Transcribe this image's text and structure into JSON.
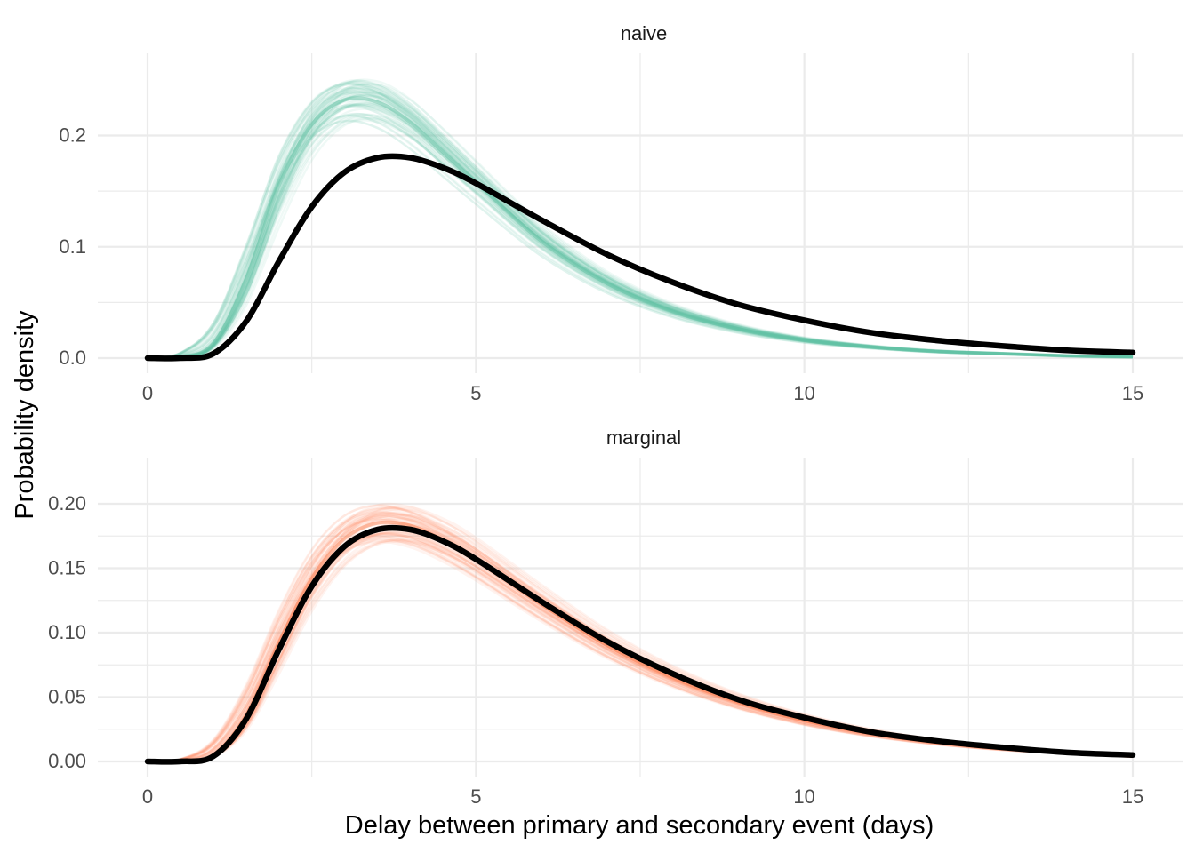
{
  "colors": {
    "naive": "#66c2a5",
    "marginal": "#fc8d62",
    "true_curve": "#000000",
    "grid": "#ebebeb"
  },
  "chart_data": {
    "type": "line",
    "xlabel": "Delay between primary and secondary event (days)",
    "ylabel": "Probability density",
    "panels": [
      {
        "label": "naive",
        "color_key": "naive",
        "xlim": [
          0,
          15
        ],
        "ylim": [
          0,
          0.25
        ],
        "x_ticks": [
          0,
          5,
          10,
          15
        ],
        "y_ticks": [
          0.0,
          0.1,
          0.2
        ],
        "y_tick_labels": [
          "0.0",
          "0.1",
          "0.2"
        ],
        "series": [
          {
            "role": "posterior_draws",
            "x": [
              0,
              0.5,
              1,
              1.5,
              2,
              2.5,
              3,
              3.5,
              4,
              4.5,
              5,
              6,
              7,
              8,
              9,
              10,
              11,
              12,
              13,
              14,
              15
            ],
            "values": [
              0,
              0.001,
              0.013,
              0.071,
              0.155,
              0.21,
              0.232,
              0.23,
              0.212,
              0.185,
              0.158,
              0.105,
              0.067,
              0.042,
              0.026,
              0.016,
              0.01,
              0.006,
              0.004,
              0.002,
              0.001
            ]
          },
          {
            "role": "true",
            "x": [
              0,
              0.5,
              1,
              1.5,
              2,
              2.5,
              3,
              3.5,
              4,
              4.5,
              5,
              6,
              7,
              8,
              9,
              10,
              11,
              12,
              13,
              14,
              15
            ],
            "values": [
              0,
              0.0,
              0.004,
              0.033,
              0.087,
              0.136,
              0.167,
              0.18,
              0.18,
              0.171,
              0.157,
              0.124,
              0.093,
              0.068,
              0.048,
              0.034,
              0.023,
              0.016,
              0.011,
              0.007,
              0.005
            ]
          }
        ]
      },
      {
        "label": "marginal",
        "color_key": "marginal",
        "xlim": [
          0,
          15
        ],
        "ylim": [
          0,
          0.22
        ],
        "x_ticks": [
          0,
          5,
          10,
          15
        ],
        "y_ticks": [
          0.0,
          0.05,
          0.1,
          0.15,
          0.2
        ],
        "y_tick_labels": [
          "0.00",
          "0.05",
          "0.10",
          "0.15",
          "0.20"
        ],
        "series": [
          {
            "role": "posterior_draws",
            "x": [
              0,
              0.5,
              1,
              1.5,
              2,
              2.5,
              3,
              3.5,
              4,
              4.5,
              5,
              6,
              7,
              8,
              9,
              10,
              11,
              12,
              13,
              14,
              15
            ],
            "values": [
              0,
              0.0,
              0.005,
              0.036,
              0.092,
              0.142,
              0.173,
              0.185,
              0.183,
              0.172,
              0.157,
              0.122,
              0.09,
              0.065,
              0.046,
              0.032,
              0.022,
              0.015,
              0.01,
              0.007,
              0.004
            ]
          },
          {
            "role": "true",
            "x": [
              0,
              0.5,
              1,
              1.5,
              2,
              2.5,
              3,
              3.5,
              4,
              4.5,
              5,
              6,
              7,
              8,
              9,
              10,
              11,
              12,
              13,
              14,
              15
            ],
            "values": [
              0,
              0.0,
              0.004,
              0.033,
              0.087,
              0.136,
              0.167,
              0.18,
              0.18,
              0.171,
              0.157,
              0.124,
              0.093,
              0.068,
              0.048,
              0.034,
              0.023,
              0.016,
              0.011,
              0.007,
              0.005
            ]
          }
        ]
      }
    ]
  }
}
